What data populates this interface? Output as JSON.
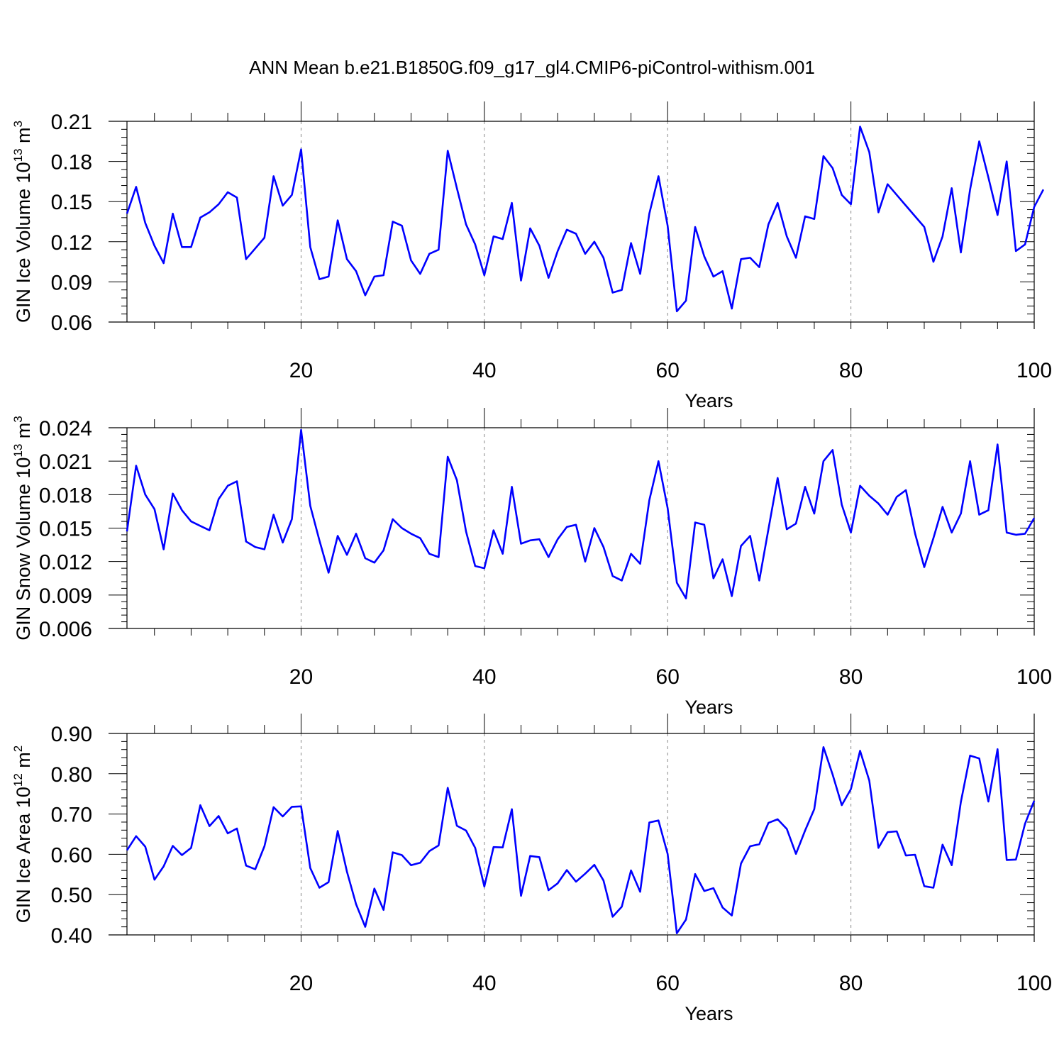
{
  "title": "ANN Mean b.e21.B1850G.f09_g17_gl4.CMIP6-piControl-withism.001",
  "colors": {
    "line": "#0000ff",
    "axis": "#000000",
    "grid": "#888888"
  },
  "chart_data": [
    {
      "type": "line",
      "xlabel": "Years",
      "ylabel": "GIN Ice Volume 10",
      "ylabel_exp": "13",
      "ylabel_unit": " m",
      "ylabel_unit_exp": "3",
      "xlim": [
        1,
        100
      ],
      "ylim": [
        0.06,
        0.21
      ],
      "xticks": [
        20,
        40,
        60,
        80,
        100
      ],
      "yticks": [
        0.06,
        0.09,
        0.12,
        0.15,
        0.18,
        0.21
      ],
      "ytick_labels": [
        "0.06",
        "0.09",
        "0.12",
        "0.15",
        "0.18",
        "0.21"
      ],
      "grid": "vertical dashed at major x ticks",
      "values": [
        0.141,
        0.161,
        0.134,
        0.117,
        0.104,
        0.141,
        0.116,
        0.116,
        0.138,
        0.142,
        0.148,
        0.157,
        0.153,
        0.107,
        0.115,
        0.123,
        0.169,
        0.147,
        0.155,
        0.189,
        0.116,
        0.092,
        0.094,
        0.136,
        0.107,
        0.098,
        0.08,
        0.094,
        0.095,
        0.135,
        0.132,
        0.106,
        0.096,
        0.111,
        0.114,
        0.188,
        0.16,
        0.133,
        0.118,
        0.095,
        0.124,
        0.122,
        0.149,
        0.091,
        0.13,
        0.117,
        0.093,
        0.113,
        0.129,
        0.126,
        0.111,
        0.12,
        0.108,
        0.082,
        0.084,
        0.119,
        0.096,
        0.141,
        0.169,
        0.132,
        0.068,
        0.076,
        0.131,
        0.109,
        0.094,
        0.098,
        0.07,
        0.107,
        0.108,
        0.101,
        0.133,
        0.149,
        0.124,
        0.108,
        0.139,
        0.137,
        0.184,
        0.175,
        0.155,
        0.148,
        0.206,
        0.187,
        0.142,
        0.163,
        0.155,
        0.147,
        0.139,
        0.131,
        0.105,
        0.124,
        0.16,
        0.112,
        0.159,
        0.195,
        0.168,
        0.14,
        0.18,
        0.113,
        0.118,
        0.146,
        0.159
      ]
    },
    {
      "type": "line",
      "xlabel": "Years",
      "ylabel": "GIN Snow Volume 10",
      "ylabel_exp": "13",
      "ylabel_unit": " m",
      "ylabel_unit_exp": "3",
      "xlim": [
        1,
        100
      ],
      "ylim": [
        0.006,
        0.024
      ],
      "xticks": [
        20,
        40,
        60,
        80,
        100
      ],
      "yticks": [
        0.006,
        0.009,
        0.012,
        0.015,
        0.018,
        0.021,
        0.024
      ],
      "ytick_labels": [
        "0.006",
        "0.009",
        "0.012",
        "0.015",
        "0.018",
        "0.021",
        "0.024"
      ],
      "grid": "vertical dashed at major x ticks",
      "values": [
        0.0147,
        0.0206,
        0.018,
        0.0167,
        0.0131,
        0.0181,
        0.0166,
        0.0156,
        0.0152,
        0.0148,
        0.0176,
        0.0188,
        0.0192,
        0.0138,
        0.0133,
        0.0131,
        0.0162,
        0.0137,
        0.0158,
        0.0238,
        0.017,
        0.0139,
        0.011,
        0.0143,
        0.0126,
        0.0145,
        0.0123,
        0.0119,
        0.013,
        0.0158,
        0.015,
        0.0145,
        0.0141,
        0.0127,
        0.0124,
        0.0214,
        0.0193,
        0.0147,
        0.0116,
        0.0114,
        0.0148,
        0.0127,
        0.0187,
        0.0136,
        0.0139,
        0.014,
        0.0124,
        0.014,
        0.0151,
        0.0153,
        0.012,
        0.015,
        0.0133,
        0.0107,
        0.0103,
        0.0127,
        0.0118,
        0.0175,
        0.021,
        0.0168,
        0.0101,
        0.0087,
        0.0155,
        0.0153,
        0.0105,
        0.0122,
        0.0089,
        0.0134,
        0.0143,
        0.0103,
        0.0149,
        0.0195,
        0.0149,
        0.0154,
        0.0187,
        0.0163,
        0.021,
        0.022,
        0.0171,
        0.0146,
        0.0188,
        0.0179,
        0.0172,
        0.0162,
        0.0178,
        0.0184,
        0.0145,
        0.0115,
        0.0141,
        0.0169,
        0.0146,
        0.0163,
        0.021,
        0.0162,
        0.0166,
        0.0225,
        0.0146,
        0.0144,
        0.0145,
        0.0159
      ]
    },
    {
      "type": "line",
      "xlabel": "Years",
      "ylabel": "GIN Ice Area 10",
      "ylabel_exp": "12",
      "ylabel_unit": " m",
      "ylabel_unit_exp": "2",
      "xlim": [
        1,
        100
      ],
      "ylim": [
        0.4,
        0.9
      ],
      "xticks": [
        20,
        40,
        60,
        80,
        100
      ],
      "yticks": [
        0.4,
        0.5,
        0.6,
        0.7,
        0.8,
        0.9
      ],
      "ytick_labels": [
        "0.40",
        "0.50",
        "0.60",
        "0.70",
        "0.80",
        "0.90"
      ],
      "grid": "vertical dashed at major x ticks",
      "values": [
        0.61,
        0.645,
        0.619,
        0.537,
        0.57,
        0.621,
        0.598,
        0.616,
        0.722,
        0.67,
        0.695,
        0.652,
        0.664,
        0.572,
        0.563,
        0.62,
        0.717,
        0.694,
        0.718,
        0.719,
        0.566,
        0.517,
        0.531,
        0.658,
        0.557,
        0.476,
        0.42,
        0.515,
        0.462,
        0.605,
        0.598,
        0.573,
        0.579,
        0.608,
        0.622,
        0.765,
        0.671,
        0.659,
        0.616,
        0.52,
        0.618,
        0.617,
        0.712,
        0.497,
        0.596,
        0.593,
        0.511,
        0.528,
        0.561,
        0.532,
        0.552,
        0.574,
        0.535,
        0.445,
        0.47,
        0.56,
        0.507,
        0.679,
        0.684,
        0.601,
        0.404,
        0.438,
        0.551,
        0.509,
        0.516,
        0.468,
        0.448,
        0.577,
        0.62,
        0.625,
        0.678,
        0.687,
        0.663,
        0.601,
        0.659,
        0.712,
        0.866,
        0.798,
        0.722,
        0.762,
        0.857,
        0.783,
        0.616,
        0.655,
        0.657,
        0.597,
        0.599,
        0.521,
        0.517,
        0.624,
        0.573,
        0.73,
        0.845,
        0.838,
        0.731,
        0.861,
        0.586,
        0.587,
        0.676,
        0.733
      ]
    }
  ]
}
